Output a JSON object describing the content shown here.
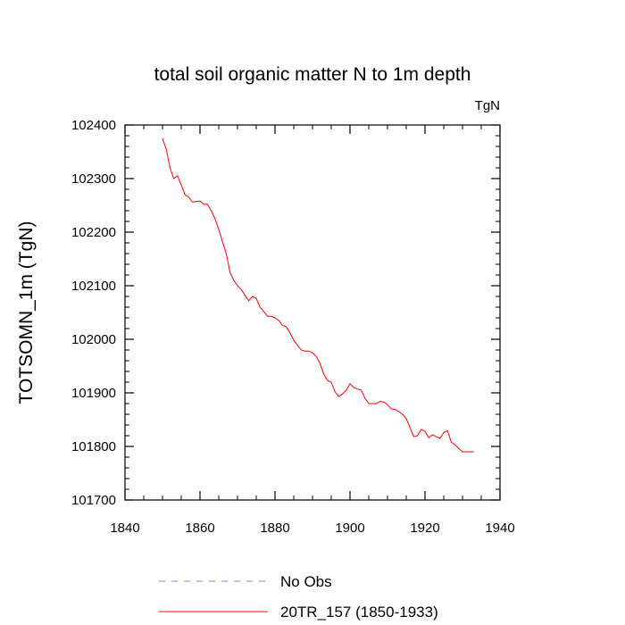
{
  "chart_data": {
    "type": "line",
    "title": "total soil organic matter N to 1m depth",
    "units_label": "TgN",
    "xlabel": "",
    "ylabel": "TOTSOMN_1m  (TgN)",
    "xlim": [
      1840,
      1940
    ],
    "ylim": [
      101700,
      102400
    ],
    "x_ticks": [
      1840,
      1860,
      1880,
      1900,
      1920,
      1940
    ],
    "y_ticks": [
      101700,
      101800,
      101900,
      102000,
      102100,
      102200,
      102300,
      102400
    ],
    "grid": false,
    "legend_position": "bottom",
    "series": [
      {
        "name": "No Obs",
        "color": "#7f7fff",
        "style": "dashed",
        "x": [],
        "values": []
      },
      {
        "name": "20TR_157 (1850-1933)",
        "color": "#ff0000",
        "style": "solid",
        "x": [
          1850,
          1851,
          1852,
          1853,
          1854,
          1855,
          1856,
          1857,
          1858,
          1859,
          1860,
          1861,
          1862,
          1863,
          1864,
          1865,
          1866,
          1867,
          1868,
          1869,
          1870,
          1871,
          1872,
          1873,
          1874,
          1875,
          1876,
          1877,
          1878,
          1879,
          1880,
          1881,
          1882,
          1883,
          1884,
          1885,
          1886,
          1887,
          1888,
          1889,
          1890,
          1891,
          1892,
          1893,
          1894,
          1895,
          1896,
          1897,
          1898,
          1899,
          1900,
          1901,
          1902,
          1903,
          1904,
          1905,
          1906,
          1907,
          1908,
          1909,
          1910,
          1911,
          1912,
          1913,
          1914,
          1915,
          1916,
          1917,
          1918,
          1919,
          1920,
          1921,
          1922,
          1923,
          1924,
          1925,
          1926,
          1927,
          1928,
          1929,
          1930,
          1931,
          1932,
          1933
        ],
        "values": [
          102375,
          102355,
          102320,
          102300,
          102305,
          102288,
          102270,
          102265,
          102256,
          102257,
          102258,
          102252,
          102252,
          102240,
          102225,
          102205,
          102182,
          102160,
          102125,
          102110,
          102100,
          102093,
          102082,
          102072,
          102080,
          102076,
          102060,
          102052,
          102043,
          102043,
          102040,
          102035,
          102026,
          102023,
          102012,
          101998,
          101989,
          101980,
          101978,
          101978,
          101975,
          101968,
          101955,
          101935,
          101923,
          101920,
          101902,
          101893,
          101898,
          101905,
          101917,
          101910,
          101907,
          101905,
          101890,
          101880,
          101880,
          101880,
          101884,
          101883,
          101878,
          101870,
          101869,
          101865,
          101860,
          101852,
          101835,
          101818,
          101820,
          101832,
          101828,
          101816,
          101822,
          101818,
          101815,
          101826,
          101829,
          101808,
          101803,
          101796,
          101790,
          101790,
          101790,
          101790
        ]
      }
    ]
  }
}
